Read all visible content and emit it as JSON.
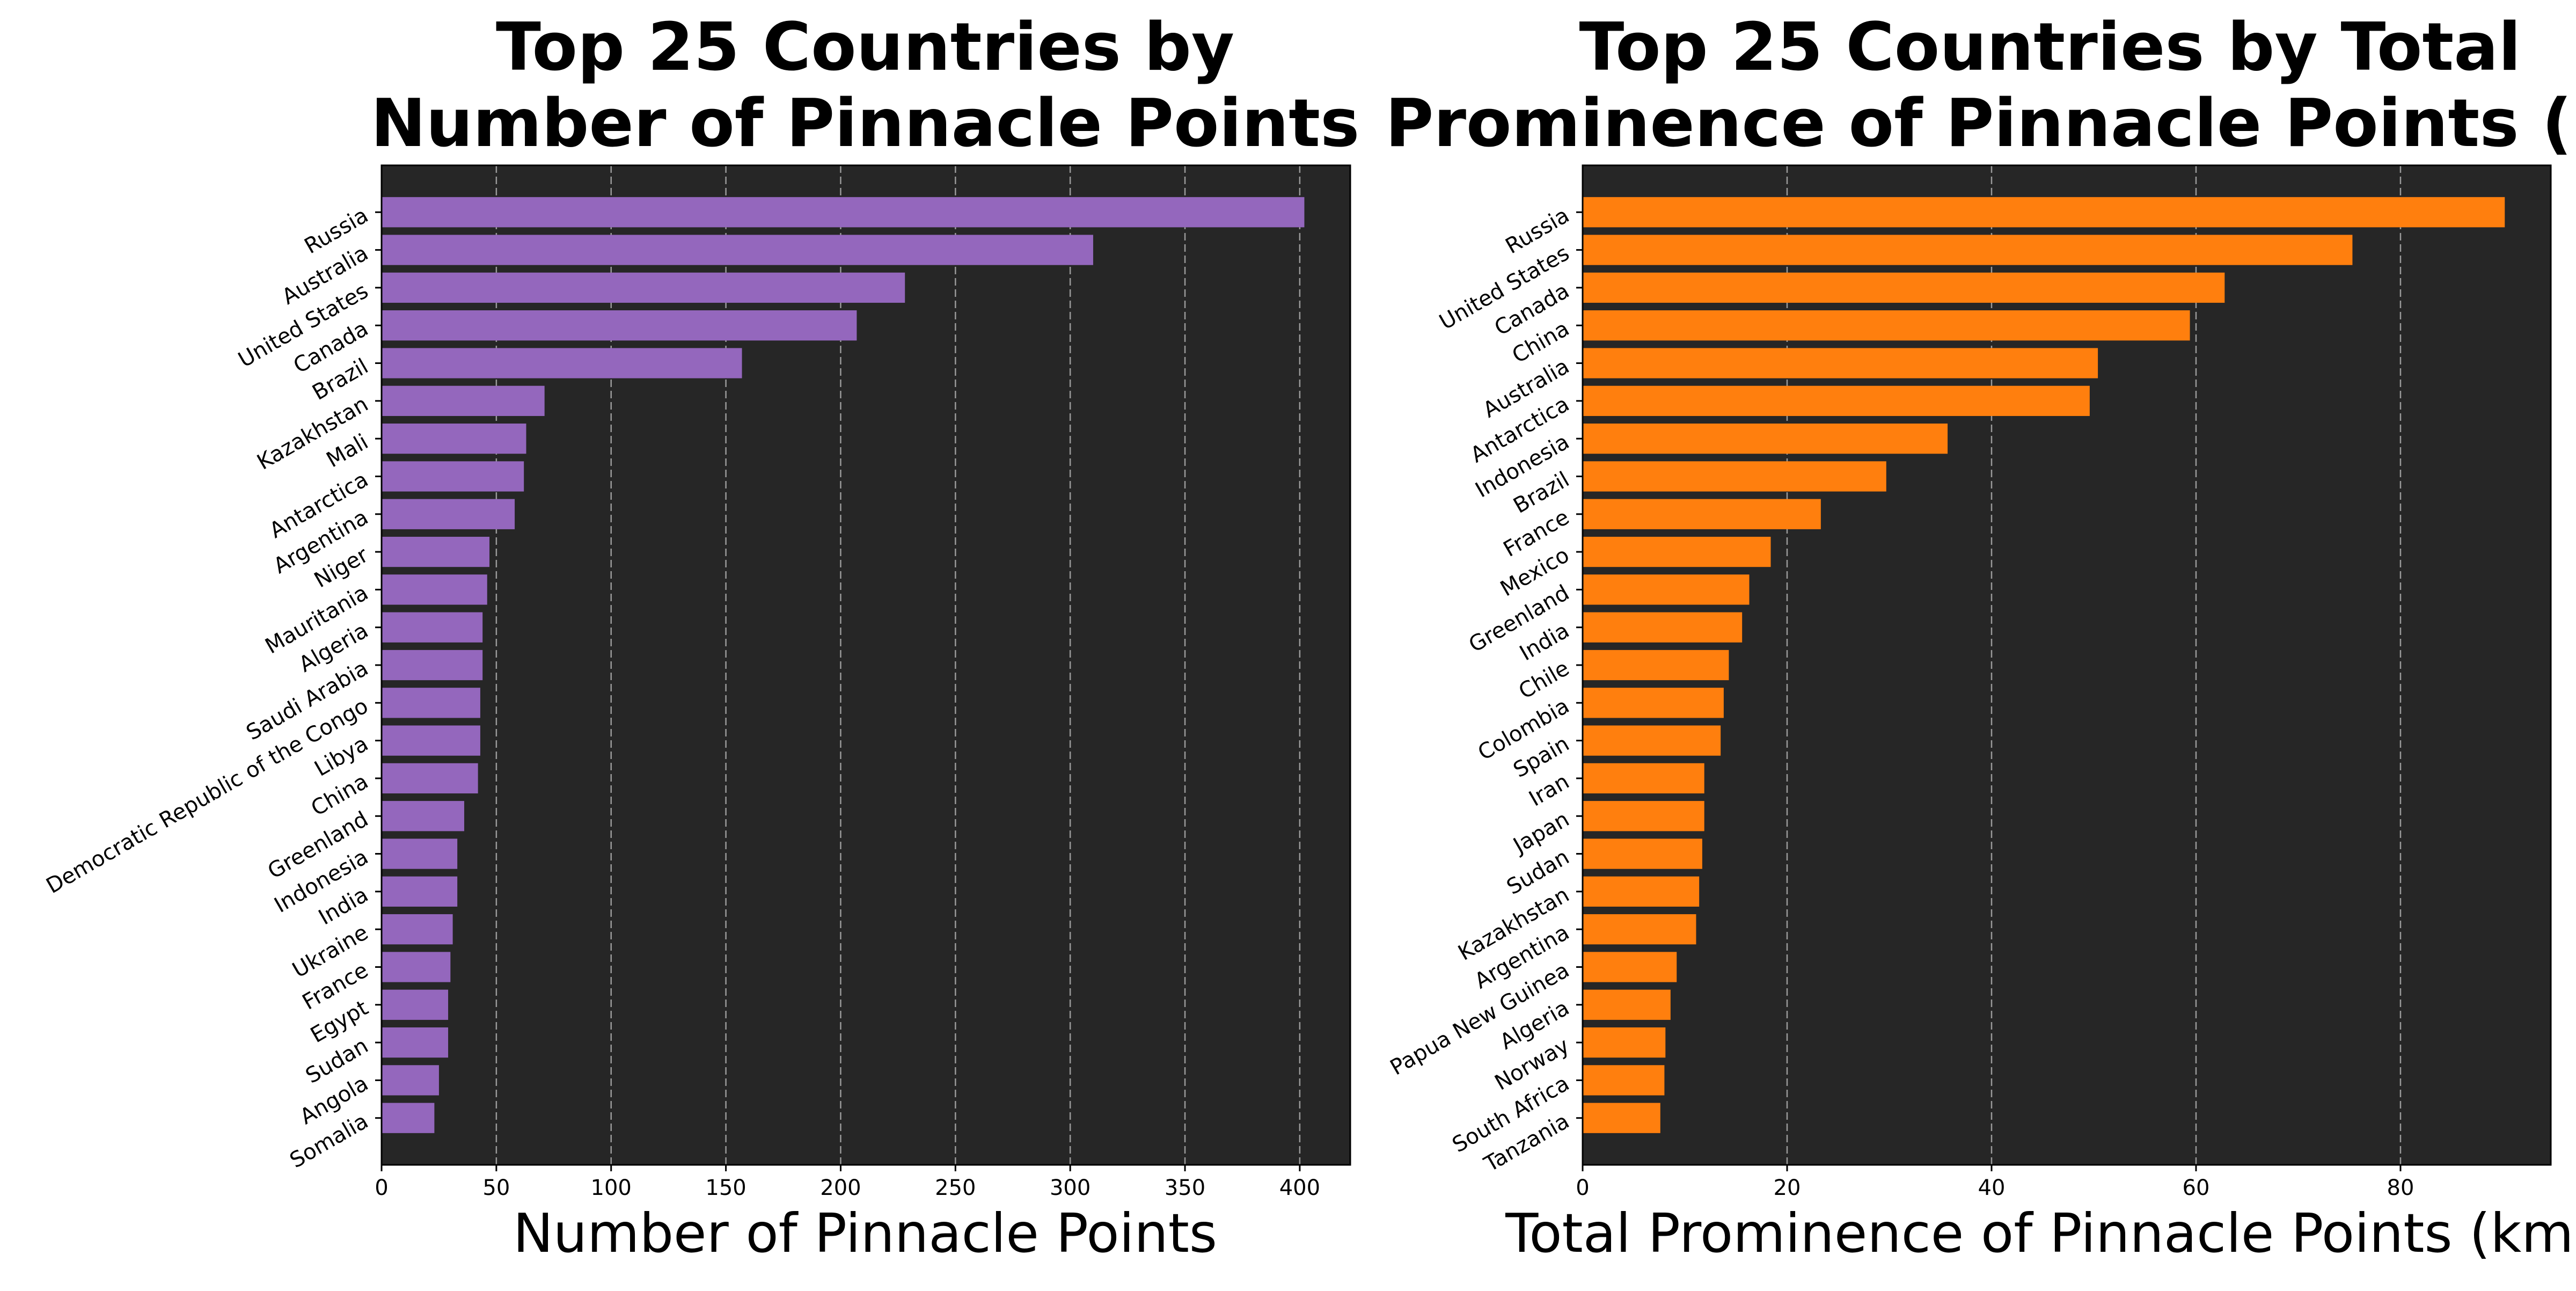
{
  "chart_data": [
    {
      "type": "bar",
      "orientation": "horizontal",
      "title_lines": [
        "Top 25 Countries by",
        "Number of Pinnacle Points"
      ],
      "xlabel": "Number of Pinnacle Points",
      "ylabel": "",
      "xlim": [
        0,
        422
      ],
      "xticks": [
        0,
        50,
        100,
        150,
        200,
        250,
        300,
        350,
        400
      ],
      "grid": "x dashed",
      "bar_color": "#9467bd",
      "background": "#262626",
      "categories": [
        "Russia",
        "Australia",
        "United States",
        "Canada",
        "Brazil",
        "Kazakhstan",
        "Mali",
        "Antarctica",
        "Argentina",
        "Niger",
        "Mauritania",
        "Algeria",
        "Saudi Arabia",
        "Democratic Republic of the Congo",
        "Libya",
        "China",
        "Greenland",
        "Indonesia",
        "India",
        "Ukraine",
        "France",
        "Egypt",
        "Sudan",
        "Angola",
        "Somalia"
      ],
      "values": [
        402,
        310,
        228,
        207,
        157,
        71,
        63,
        62,
        58,
        47,
        46,
        44,
        44,
        43,
        43,
        42,
        36,
        33,
        33,
        31,
        30,
        29,
        29,
        25,
        23
      ]
    },
    {
      "type": "bar",
      "orientation": "horizontal",
      "title_lines": [
        "Top 25 Countries by Total",
        "Prominence of Pinnacle Points (km)"
      ],
      "xlabel": "Total Prominence of Pinnacle Points (km)",
      "ylabel": "",
      "xlim": [
        0,
        94.7
      ],
      "xticks": [
        0,
        20,
        40,
        60,
        80
      ],
      "grid": "x dashed",
      "bar_color": "#ff7f0e",
      "background": "#262626",
      "categories": [
        "Russia",
        "United States",
        "Canada",
        "China",
        "Australia",
        "Antarctica",
        "Indonesia",
        "Brazil",
        "France",
        "Mexico",
        "Greenland",
        "India",
        "Chile",
        "Colombia",
        "Spain",
        "Iran",
        "Japan",
        "Sudan",
        "Kazakhstan",
        "Argentina",
        "Papua New Guinea",
        "Algeria",
        "Norway",
        "South Africa",
        "Tanzania"
      ],
      "values": [
        90.2,
        75.3,
        62.8,
        59.4,
        50.4,
        49.6,
        35.7,
        29.7,
        23.3,
        18.4,
        16.3,
        15.6,
        14.3,
        13.8,
        13.5,
        11.9,
        11.9,
        11.7,
        11.4,
        11.1,
        9.2,
        8.6,
        8.1,
        8.0,
        7.6
      ]
    }
  ]
}
